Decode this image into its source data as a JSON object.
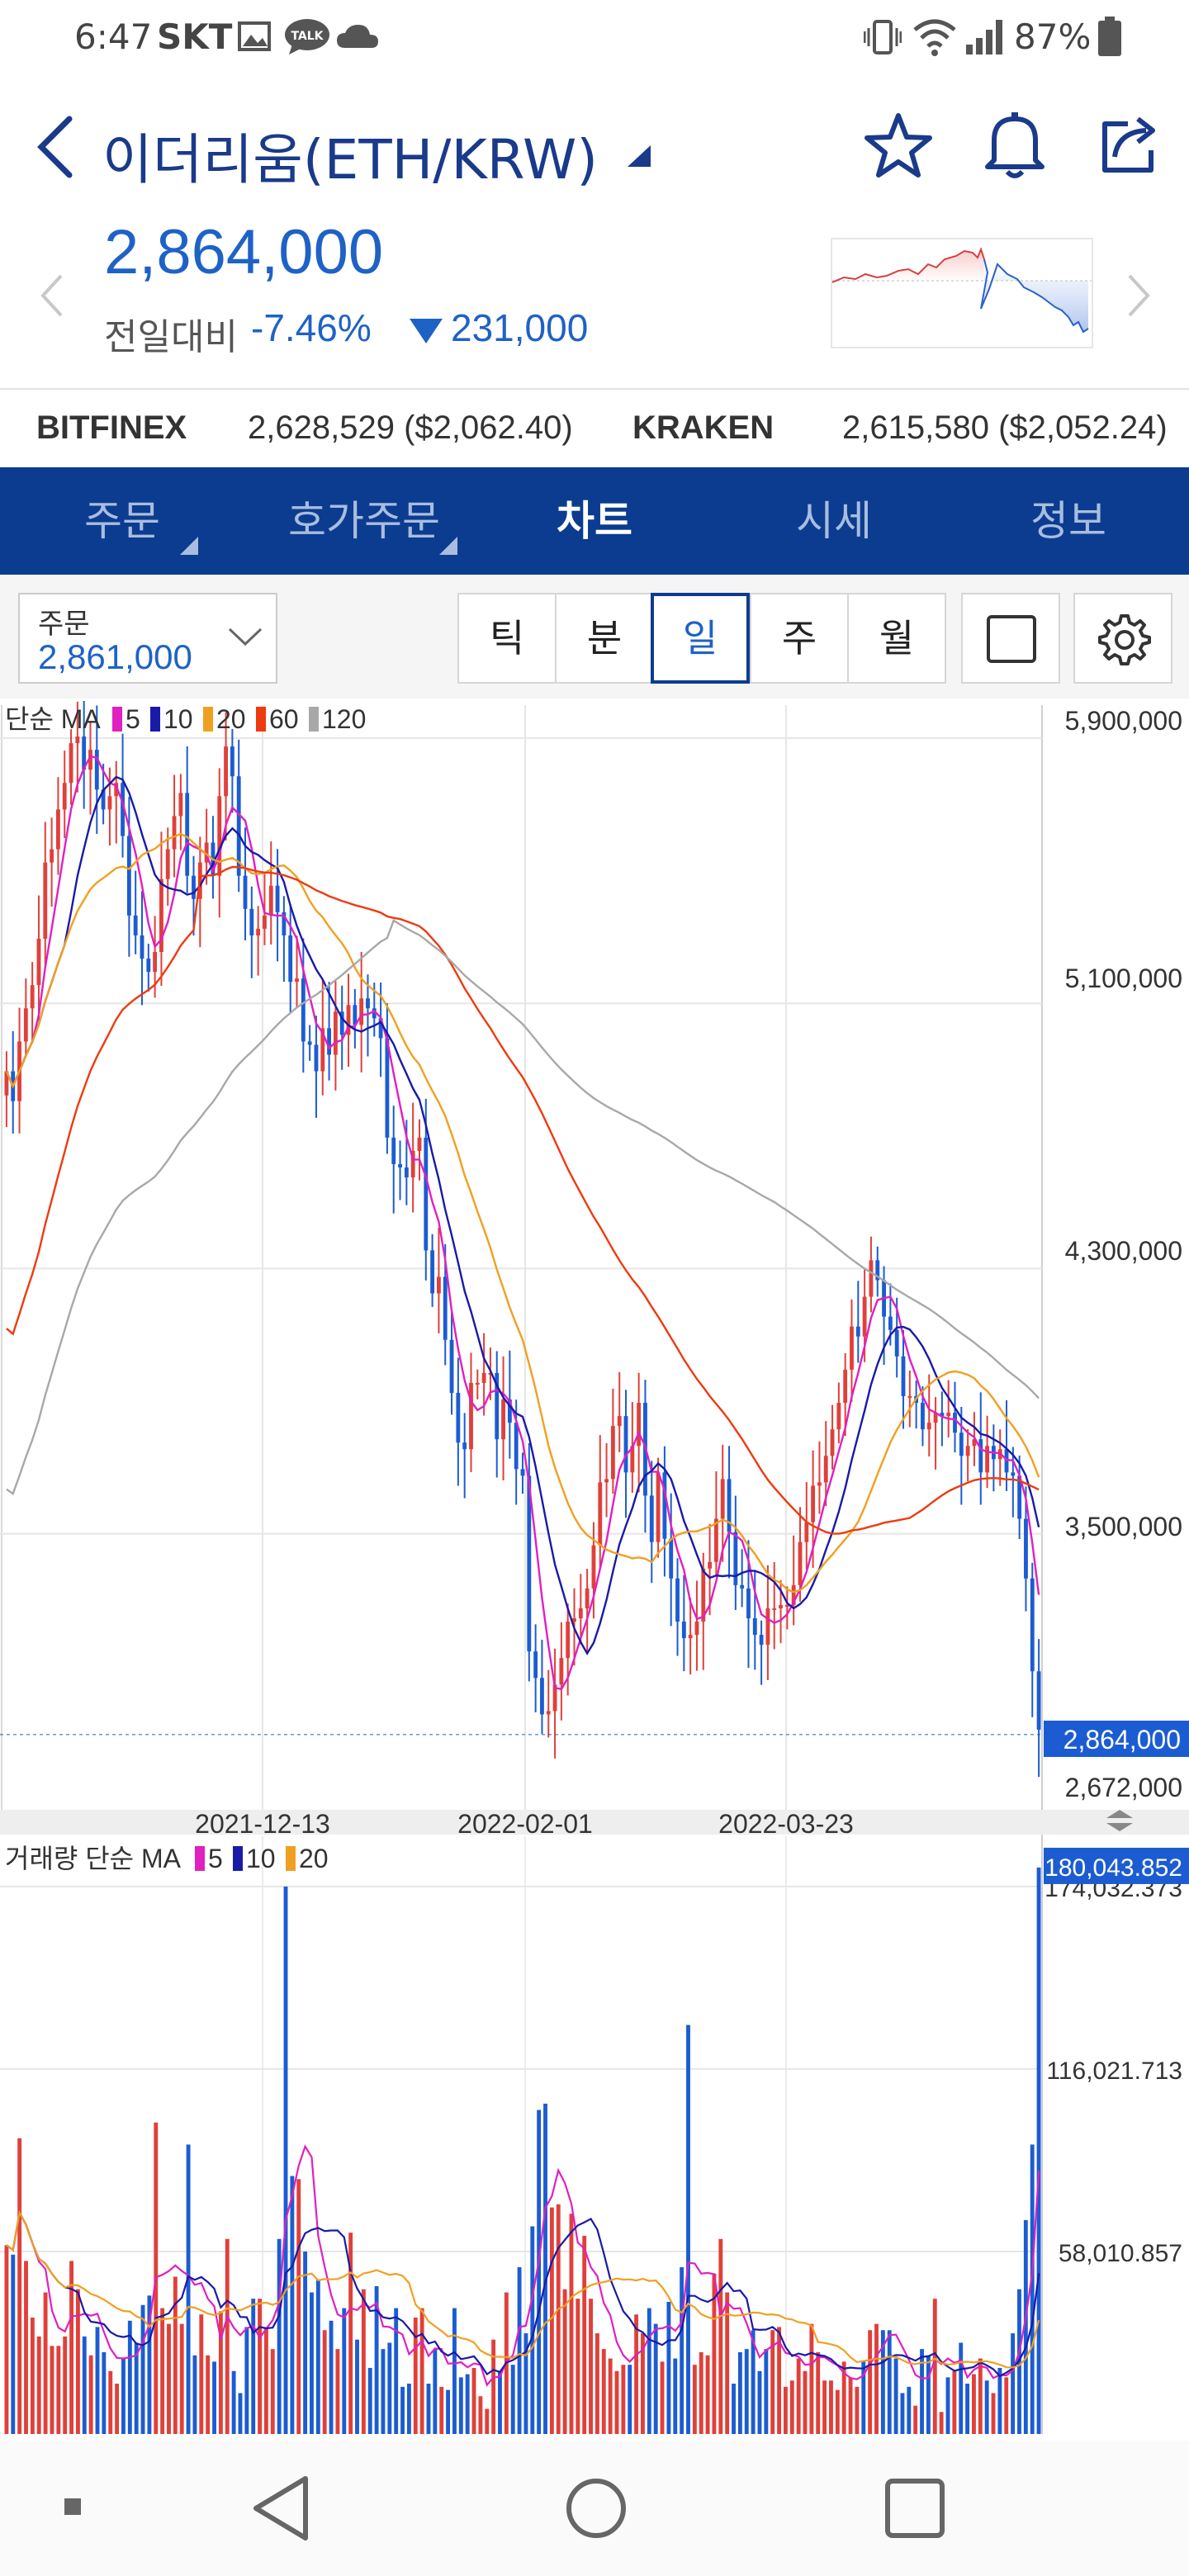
{
  "status_bar": {
    "time": "6:47",
    "carrier": "SKT",
    "battery": "87%"
  },
  "header": {
    "title": "이더리움(ETH/KRW)",
    "price": "2,864,000",
    "compare_label": "전일대비",
    "change_pct": "-7.46%",
    "change_abs": "231,000",
    "accent_color": "#1f62c6"
  },
  "exchanges": [
    {
      "name": "BITFINEX",
      "value": "2,628,529 ($2,062.40)"
    },
    {
      "name": "KRAKEN",
      "value": "2,615,580 ($2,052.24)"
    }
  ],
  "tabs": [
    {
      "label": "주문",
      "active": false
    },
    {
      "label": "호가주문",
      "active": false
    },
    {
      "label": "차트",
      "active": true
    },
    {
      "label": "시세",
      "active": false
    },
    {
      "label": "정보",
      "active": false
    }
  ],
  "controls": {
    "order_label": "주문",
    "order_value": "2,861,000",
    "periods": [
      "틱",
      "분",
      "일",
      "주",
      "월"
    ],
    "selected_period": "일"
  },
  "chart_data": [
    {
      "type": "candlestick",
      "legend_prefix": "단순 MA",
      "legend": [
        "5",
        "10",
        "20",
        "60",
        "120"
      ],
      "legend_colors": [
        "#e020c0",
        "#1a1aa8",
        "#f0a020",
        "#ee3a10",
        "#a8a8a8"
      ],
      "y_ticks": [
        "5,900,000",
        "5,100,000",
        "4,300,000",
        "3,500,000",
        "2,672,000"
      ],
      "current_price_label": "2,864,000",
      "x_ticks": [
        "2021-12-13",
        "2022-02-01",
        "2022-03-23"
      ],
      "ylim": [
        2672000,
        5900000
      ],
      "close": [
        4850000,
        4760000,
        4940000,
        5040000,
        5110000,
        5250000,
        5480000,
        5520000,
        5640000,
        5720000,
        5840000,
        5860000,
        5760000,
        5820000,
        5700000,
        5640000,
        5680000,
        5720000,
        5560000,
        5320000,
        5260000,
        5190000,
        5150000,
        5210000,
        5430000,
        5520000,
        5620000,
        5690000,
        5440000,
        5370000,
        5480000,
        5540000,
        5440000,
        5680000,
        5830000,
        5740000,
        5440000,
        5340000,
        5260000,
        5280000,
        5320000,
        5410000,
        5330000,
        5260000,
        5120000,
        5130000,
        4940000,
        4930000,
        4850000,
        4980000,
        4900000,
        5030000,
        4960000,
        5050000,
        4990000,
        5070000,
        5040000,
        5010000,
        4950000,
        4650000,
        4570000,
        4560000,
        4530000,
        4610000,
        4650000,
        4310000,
        4180000,
        4230000,
        4040000,
        3880000,
        3730000,
        3710000,
        3910000,
        3910000,
        3940000,
        3940000,
        3740000,
        3860000,
        3790000,
        3650000,
        3630000,
        3100000,
        3020000,
        2910000,
        2920000,
        3000000,
        3080000,
        3190000,
        3200000,
        3230000,
        3290000,
        3420000,
        3610000,
        3620000,
        3780000,
        3810000,
        3640000,
        3720000,
        3850000,
        3570000,
        3430000,
        3640000,
        3440000,
        3320000,
        3190000,
        3140000,
        3150000,
        3190000,
        3350000,
        3370000,
        3500000,
        3620000,
        3460000,
        3300000,
        3290000,
        3200000,
        3150000,
        3120000,
        3230000,
        3230000,
        3240000,
        3240000,
        3300000,
        3430000,
        3490000,
        3600000,
        3610000,
        3690000,
        3770000,
        3850000,
        3950000,
        4080000,
        4050000,
        4170000,
        4280000,
        4220000,
        4110000,
        4070000,
        3990000,
        3870000,
        3870000,
        3850000,
        3770000,
        3790000,
        3820000,
        3810000,
        3820000,
        3760000,
        3690000,
        3720000,
        3740000,
        3640000,
        3720000,
        3680000,
        3710000,
        3640000,
        3630000,
        3500000,
        3320000,
        3040000,
        2864000
      ]
    },
    {
      "type": "bar",
      "legend_prefix": "거래량 단순 MA",
      "legend": [
        "5",
        "10",
        "20"
      ],
      "legend_colors": [
        "#e020c0",
        "#1a1aa8",
        "#f0a020"
      ],
      "y_ticks": [
        "174,032.373",
        "116,021.713",
        "58,010.857"
      ],
      "current_value_label": "180,043.852",
      "ylim": [
        0,
        190000
      ],
      "values": [
        60000,
        57000,
        94000,
        55000,
        37000,
        31000,
        45000,
        28000,
        28000,
        31000,
        55000,
        46000,
        31000,
        25000,
        34000,
        26000,
        20000,
        16000,
        24000,
        36000,
        29000,
        41000,
        44000,
        99000,
        40000,
        35000,
        50000,
        35000,
        92000,
        25000,
        38000,
        25000,
        23000,
        39000,
        62000,
        20000,
        13000,
        34000,
        43000,
        43000,
        34000,
        27000,
        62000,
        174000,
        82000,
        81000,
        58000,
        45000,
        49000,
        33000,
        36000,
        27000,
        40000,
        64000,
        30000,
        46000,
        21000,
        47000,
        27000,
        29000,
        40000,
        15000,
        16000,
        37000,
        40000,
        16000,
        27000,
        15000,
        14000,
        40000,
        18000,
        19000,
        21000,
        12000,
        8000,
        30000,
        20000,
        45000,
        22000,
        53000,
        32000,
        66000,
        103000,
        105000,
        72000,
        73000,
        46000,
        70000,
        43000,
        63000,
        43000,
        32000,
        27000,
        24000,
        20000,
        22000,
        22000,
        38000,
        32000,
        40000,
        35000,
        23000,
        42000,
        24000,
        53000,
        130000,
        22000,
        26000,
        25000,
        51000,
        62000,
        45000,
        16000,
        26000,
        27000,
        33000,
        20000,
        27000,
        33000,
        34000,
        15000,
        17000,
        24000,
        20000,
        35000,
        26000,
        17000,
        17000,
        14000,
        23000,
        18000,
        15000,
        23000,
        33000,
        35000,
        33000,
        33000,
        24000,
        13000,
        15000,
        9000,
        27000,
        25000,
        43000,
        7000,
        18000,
        20000,
        29000,
        16000,
        19000,
        24000,
        17000,
        13000,
        21000,
        18000,
        32000,
        46000,
        68000,
        92000,
        180043
      ]
    }
  ]
}
